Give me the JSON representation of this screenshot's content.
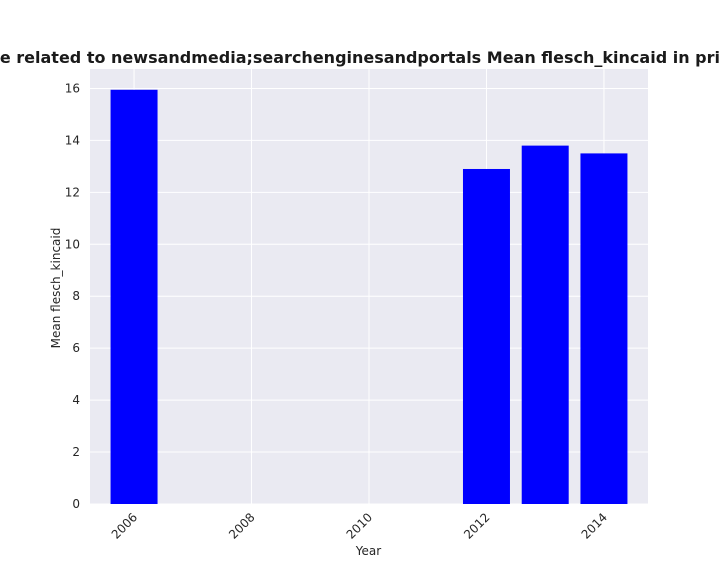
{
  "chart_data": {
    "type": "bar",
    "title": "ories are related to newsandmedia;searchenginesandportals Mean flesch_kincaid in privacy po",
    "xlabel": "Year",
    "ylabel": "Mean flesch_kincaid",
    "bars": [
      {
        "x": 2006,
        "value": 15.95
      },
      {
        "x": 2012,
        "value": 12.9
      },
      {
        "x": 2013,
        "value": 13.8
      },
      {
        "x": 2014,
        "value": 13.5
      }
    ],
    "bar_width_years": 0.8,
    "xlim": [
      2005.25,
      2014.75
    ],
    "ylim": [
      0,
      16.75
    ],
    "x_ticks": [
      2006,
      2008,
      2010,
      2012,
      2014
    ],
    "x_tick_labels": [
      "2006",
      "2008",
      "2010",
      "2012",
      "2014"
    ],
    "y_ticks": [
      0,
      2,
      4,
      6,
      8,
      10,
      12,
      14,
      16
    ],
    "y_tick_labels": [
      "0",
      "2",
      "4",
      "6",
      "8",
      "10",
      "12",
      "14",
      "16"
    ],
    "bar_color": "#0000ff",
    "plot_background": "#eaeaf2",
    "grid": true,
    "grid_color": "#ffffff"
  }
}
